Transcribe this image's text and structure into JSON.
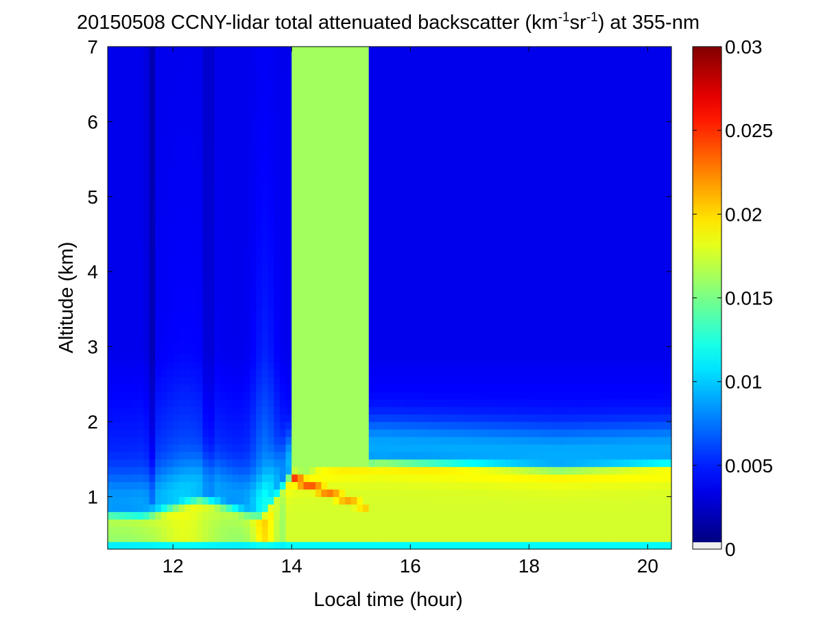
{
  "chart_data": {
    "type": "heatmap",
    "title": {
      "prefix": "20150508 CCNY-lidar total attenuated backscatter (km",
      "sup1": "-1",
      "mid": "sr",
      "sup2": "-1",
      "suffix": ") at 355-nm"
    },
    "xlabel": "Local time (hour)",
    "ylabel": "Altitude (km)",
    "xlim": [
      10.9,
      20.4
    ],
    "ylim": [
      0.3,
      7
    ],
    "xticks": [
      12,
      14,
      16,
      18,
      20
    ],
    "yticks": [
      1,
      2,
      3,
      4,
      5,
      6,
      7
    ],
    "colorbar": {
      "colormap": "jet",
      "clim": [
        0,
        0.03
      ],
      "ticks": [
        0,
        0.005,
        0.01,
        0.015,
        0.02,
        0.025,
        0.03
      ]
    },
    "features": [
      {
        "name": "boundary-layer-top-ridge",
        "start_hour": 14.0,
        "end_hour": 15.3,
        "altitude_start_km": 1.25,
        "altitude_end_km": 0.85,
        "value": 0.025
      },
      {
        "name": "aerosol-layer-top",
        "values_km": [
          [
            10.9,
            0.75
          ],
          [
            11.5,
            0.72
          ],
          [
            12.5,
            0.95
          ],
          [
            13.5,
            0.7
          ],
          [
            14.0,
            1.3
          ],
          [
            14.5,
            1.4
          ],
          [
            15.5,
            1.45
          ],
          [
            17.0,
            1.4
          ],
          [
            18.5,
            1.35
          ],
          [
            20.4,
            1.4
          ]
        ]
      }
    ]
  }
}
